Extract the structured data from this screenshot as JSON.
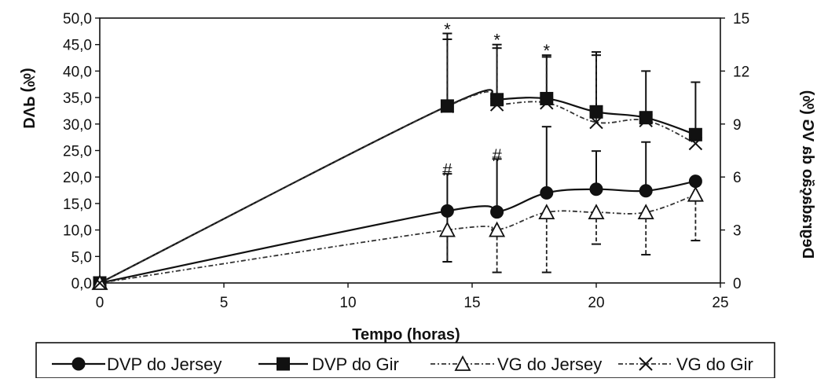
{
  "chart_data": {
    "type": "line",
    "xlabel": "Tempo (horas)",
    "ylabel_left": "DVP (%)",
    "ylabel_right": "Degradação da VG (%)",
    "xlim": [
      0,
      25
    ],
    "ylim_left": [
      0,
      50
    ],
    "ylim_right": [
      0,
      15
    ],
    "x_ticks": [
      "0",
      "5",
      "10",
      "15",
      "20",
      "25"
    ],
    "y_ticks_left": [
      "0,0",
      "5,0",
      "10,0",
      "15,0",
      "20,0",
      "25,0",
      "30,0",
      "35,0",
      "40,0",
      "45,0",
      "50,0"
    ],
    "y_ticks_right": [
      "0",
      "3",
      "6",
      "9",
      "12",
      "15"
    ],
    "grid": false,
    "legend_position": "bottom",
    "series": [
      {
        "name": "DVP do Jersey",
        "axis": "left",
        "marker": "circle",
        "line_style": "solid",
        "x": [
          0,
          14,
          16,
          18,
          20,
          22,
          24
        ],
        "values": [
          0,
          13.6,
          13.4,
          17.0,
          17.7,
          17.4,
          19.2
        ],
        "error_plus": [
          0,
          7.0,
          10.0,
          12.5,
          7.2,
          9.2,
          0
        ],
        "error_minus": [
          0,
          9.6,
          0,
          0,
          0,
          0,
          0
        ]
      },
      {
        "name": "DVP do Gir",
        "axis": "left",
        "marker": "square",
        "line_style": "solid",
        "x": [
          0,
          14,
          16,
          18,
          20,
          22,
          24
        ],
        "values": [
          0,
          33.4,
          34.6,
          34.8,
          32.3,
          31.2,
          28.0
        ],
        "error_plus": [
          0,
          13.7,
          10.4,
          8.2,
          11.3,
          8.8,
          9.9
        ],
        "error_minus": [
          0,
          0,
          0,
          0,
          0,
          0,
          0
        ]
      },
      {
        "name": "VG do Jersey",
        "axis": "right",
        "marker": "triangle-open",
        "line_style": "dashed",
        "x": [
          0,
          14,
          16,
          18,
          20,
          22,
          24
        ],
        "values": [
          0,
          3.0,
          3.0,
          4.0,
          4.0,
          4.0,
          5.0
        ],
        "error_plus": [
          0,
          0,
          0,
          0,
          0,
          0,
          0
        ],
        "error_minus": [
          0,
          1.8,
          2.4,
          3.4,
          1.8,
          2.4,
          2.6
        ]
      },
      {
        "name": "VG do Gir",
        "axis": "right",
        "marker": "x",
        "line_style": "dashed",
        "x": [
          0,
          14,
          16,
          18,
          20,
          22,
          24
        ],
        "values": [
          0,
          10.0,
          10.1,
          10.2,
          9.1,
          9.2,
          7.9
        ],
        "error_plus": [
          0,
          3.8,
          3.2,
          2.6,
          3.8,
          0,
          0
        ],
        "error_minus": [
          0,
          0,
          0,
          0,
          0,
          0,
          0
        ]
      }
    ],
    "annotations": [
      {
        "text": "*",
        "x": 14,
        "axis_value": 48.5
      },
      {
        "text": "*",
        "x": 16,
        "axis_value": 46.5
      },
      {
        "text": "*",
        "x": 18,
        "axis_value": 44.5
      },
      {
        "text": "#",
        "x": 14,
        "axis_value": 22.0
      },
      {
        "text": "#",
        "x": 16,
        "axis_value": 24.8
      }
    ]
  }
}
